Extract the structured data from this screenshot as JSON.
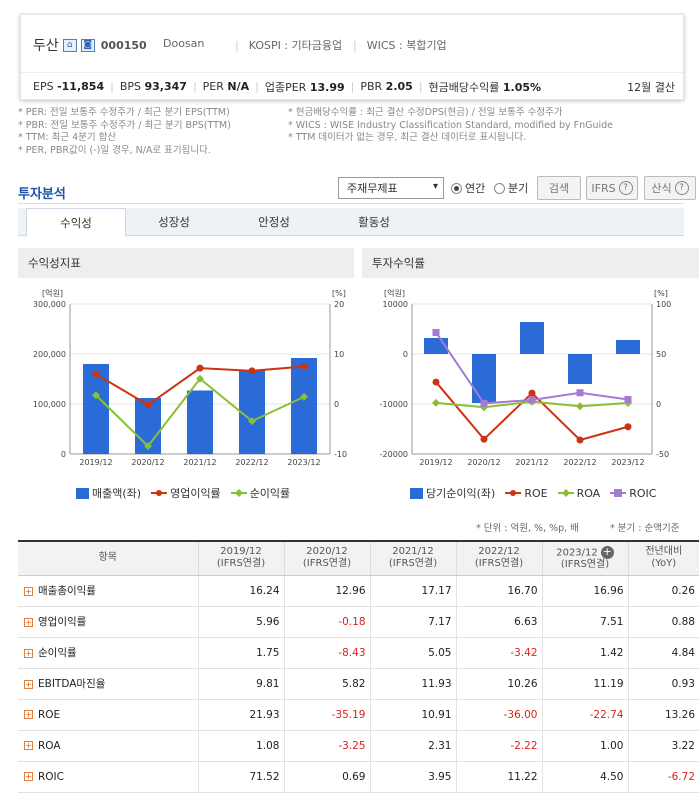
{
  "header": {
    "company": "두산",
    "code": "000150",
    "meta": [
      "Doosan",
      "KOSPI : 기타금융업",
      "WICS : 복합기업"
    ],
    "metrics": [
      {
        "label": "EPS",
        "value": "-11,854"
      },
      {
        "label": "BPS",
        "value": "93,347"
      },
      {
        "label": "PER",
        "value": "N/A"
      },
      {
        "label": "업종PER",
        "value": "13.99"
      },
      {
        "label": "PBR",
        "value": "2.05"
      },
      {
        "label": "현금배당수익률",
        "value": "1.05%"
      }
    ],
    "fiscal": "12월 결산"
  },
  "notes_left": [
    "* PER: 전일 보통주 수정주가 / 최근 분기 EPS(TTM)",
    "* PBR: 전일 보통주 수정주가 / 최근 분기 BPS(TTM)",
    "* TTM: 최근 4분기 합산",
    "* PER, PBR값이 (-)일 경우, N/A로 표기됩니다."
  ],
  "notes_right": [
    "* 현금배당수익률 : 최근 결산 수정DPS(현금) / 전일 보통주 수정주가",
    "* WICS : WISE Industry Classification Standard, modified by FnGuide",
    "* TTM 데이터가 없는 경우, 최근 결산 데이터로 표시됩니다."
  ],
  "section_title": "투자분석",
  "controls": {
    "select": "주재무제표",
    "radio_annual": "연간",
    "radio_quarter": "분기",
    "search": "검색",
    "ifrs": "IFRS",
    "formula": "산식"
  },
  "tabs": [
    "수익성",
    "성장성",
    "안정성",
    "활동성"
  ],
  "panel_left_title": "수익성지표",
  "panel_right_title": "투자수익률",
  "colors": {
    "bar": "#2a6bd8",
    "red": "#cc3311",
    "green": "#88c033",
    "purple": "#a47ad6"
  },
  "chart_left": {
    "y_unit_left": "[억원]",
    "y_unit_right": "[%]",
    "y_left_ticks": [
      "300,000",
      "200,000",
      "100,000",
      "0"
    ],
    "y_right_ticks": [
      "20",
      "10",
      "0",
      "-10"
    ]
  },
  "chart_right": {
    "y_unit_left": "[억원]",
    "y_unit_right": "[%]",
    "y_left_ticks": [
      "10000",
      "0",
      "-10000",
      "-20000"
    ],
    "y_right_ticks": [
      "100",
      "50",
      "0",
      "-50"
    ]
  },
  "chart_data": [
    {
      "type": "bar",
      "categories": [
        "2019/12",
        "2020/12",
        "2021/12",
        "2022/12",
        "2023/12"
      ],
      "ylim": [
        0,
        300000
      ],
      "y2lim": [
        -10,
        20
      ],
      "series": [
        {
          "name": "매출액(좌)",
          "axis": "left",
          "values": [
            180000,
            112000,
            127000,
            168000,
            192000
          ]
        },
        {
          "name": "영업이익률",
          "axis": "right",
          "values": [
            5.96,
            -0.18,
            7.17,
            6.63,
            7.51
          ]
        },
        {
          "name": "순이익률",
          "axis": "right",
          "values": [
            1.75,
            -8.43,
            5.05,
            -3.42,
            1.42
          ]
        }
      ]
    },
    {
      "type": "bar",
      "categories": [
        "2019/12",
        "2020/12",
        "2021/12",
        "2022/12",
        "2023/12"
      ],
      "ylim": [
        -20000,
        10000
      ],
      "y2lim": [
        -50,
        100
      ],
      "series": [
        {
          "name": "당기순이익(좌)",
          "axis": "left",
          "values": [
            3200,
            -9800,
            6400,
            -6000,
            2800
          ]
        },
        {
          "name": "ROE",
          "axis": "right",
          "values": [
            21.93,
            -35.19,
            10.91,
            -36.0,
            -22.74
          ]
        },
        {
          "name": "ROA",
          "axis": "right",
          "values": [
            1.08,
            -3.25,
            2.31,
            -2.22,
            1.0
          ]
        },
        {
          "name": "ROIC",
          "axis": "right",
          "values": [
            71.52,
            0.69,
            3.95,
            11.22,
            4.5
          ]
        }
      ]
    }
  ],
  "unit_note_left": "* 단위 : 억원, %, %p, 배",
  "unit_note_right": "* 분기 : 순액기준",
  "table": {
    "header_item": "항목",
    "columns": [
      {
        "l1": "2019/12",
        "l2": "(IFRS연결)"
      },
      {
        "l1": "2020/12",
        "l2": "(IFRS연결)"
      },
      {
        "l1": "2021/12",
        "l2": "(IFRS연결)"
      },
      {
        "l1": "2022/12",
        "l2": "(IFRS연결)"
      },
      {
        "l1": "2023/12",
        "l2": "(IFRS연결)"
      },
      {
        "l1": "전년대비",
        "l2": "(YoY)"
      }
    ],
    "rows": [
      {
        "name": "매출총이익률",
        "vals": [
          "16.24",
          "12.96",
          "17.17",
          "16.70",
          "16.96",
          "0.26"
        ]
      },
      {
        "name": "영업이익률",
        "vals": [
          "5.96",
          "-0.18",
          "7.17",
          "6.63",
          "7.51",
          "0.88"
        ]
      },
      {
        "name": "순이익률",
        "vals": [
          "1.75",
          "-8.43",
          "5.05",
          "-3.42",
          "1.42",
          "4.84"
        ]
      },
      {
        "name": "EBITDA마진율",
        "vals": [
          "9.81",
          "5.82",
          "11.93",
          "10.26",
          "11.19",
          "0.93"
        ]
      },
      {
        "name": "ROE",
        "vals": [
          "21.93",
          "-35.19",
          "10.91",
          "-36.00",
          "-22.74",
          "13.26"
        ]
      },
      {
        "name": "ROA",
        "vals": [
          "1.08",
          "-3.25",
          "2.31",
          "-2.22",
          "1.00",
          "3.22"
        ]
      },
      {
        "name": "ROIC",
        "vals": [
          "71.52",
          "0.69",
          "3.95",
          "11.22",
          "4.50",
          "-6.72"
        ]
      }
    ]
  }
}
